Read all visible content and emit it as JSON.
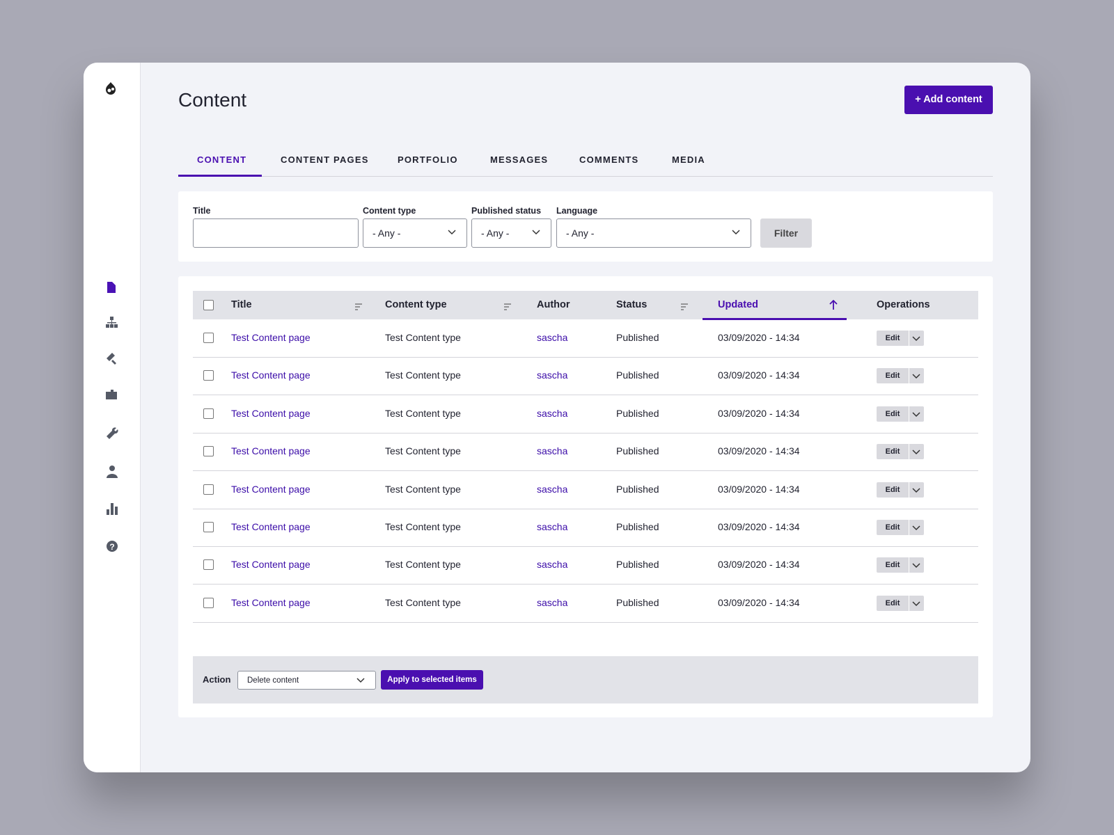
{
  "header": {
    "title": "Content",
    "button": "+ Add content"
  },
  "tabs": [
    "CONTENT",
    "CONTENT PAGES",
    "PORTFOLIO",
    "MESSAGES",
    "COMMENTS",
    "MEDIA"
  ],
  "filters": {
    "title_label": "Title",
    "type_label": "Content type",
    "type_value": "- Any -",
    "status_label": "Published status",
    "status_value": "- Any -",
    "language_label": "Language",
    "language_value": "- Any -",
    "button": "Filter"
  },
  "table": {
    "headers": [
      "Title",
      "Content type",
      "Author",
      "Status",
      "Updated",
      "Operations"
    ],
    "rows": [
      [
        "Test Content page",
        "Test Content type",
        "sascha",
        "Published",
        "03/09/2020 - 14:34",
        "Edit"
      ],
      [
        "Test Content page",
        "Test Content type",
        "sascha",
        "Published",
        "03/09/2020 - 14:34",
        "Edit"
      ],
      [
        "Test Content page",
        "Test Content type",
        "sascha",
        "Published",
        "03/09/2020 - 14:34",
        "Edit"
      ],
      [
        "Test Content page",
        "Test Content type",
        "sascha",
        "Published",
        "03/09/2020 - 14:34",
        "Edit"
      ],
      [
        "Test Content page",
        "Test Content type",
        "sascha",
        "Published",
        "03/09/2020 - 14:34",
        "Edit"
      ],
      [
        "Test Content page",
        "Test Content type",
        "sascha",
        "Published",
        "03/09/2020 - 14:34",
        "Edit"
      ],
      [
        "Test Content page",
        "Test Content type",
        "sascha",
        "Published",
        "03/09/2020 - 14:34",
        "Edit"
      ],
      [
        "Test Content page",
        "Test Content type",
        "sascha",
        "Published",
        "03/09/2020 - 14:34",
        "Edit"
      ]
    ]
  },
  "action": {
    "label": "Action",
    "select": "Delete content",
    "button": "Apply to selected items"
  }
}
